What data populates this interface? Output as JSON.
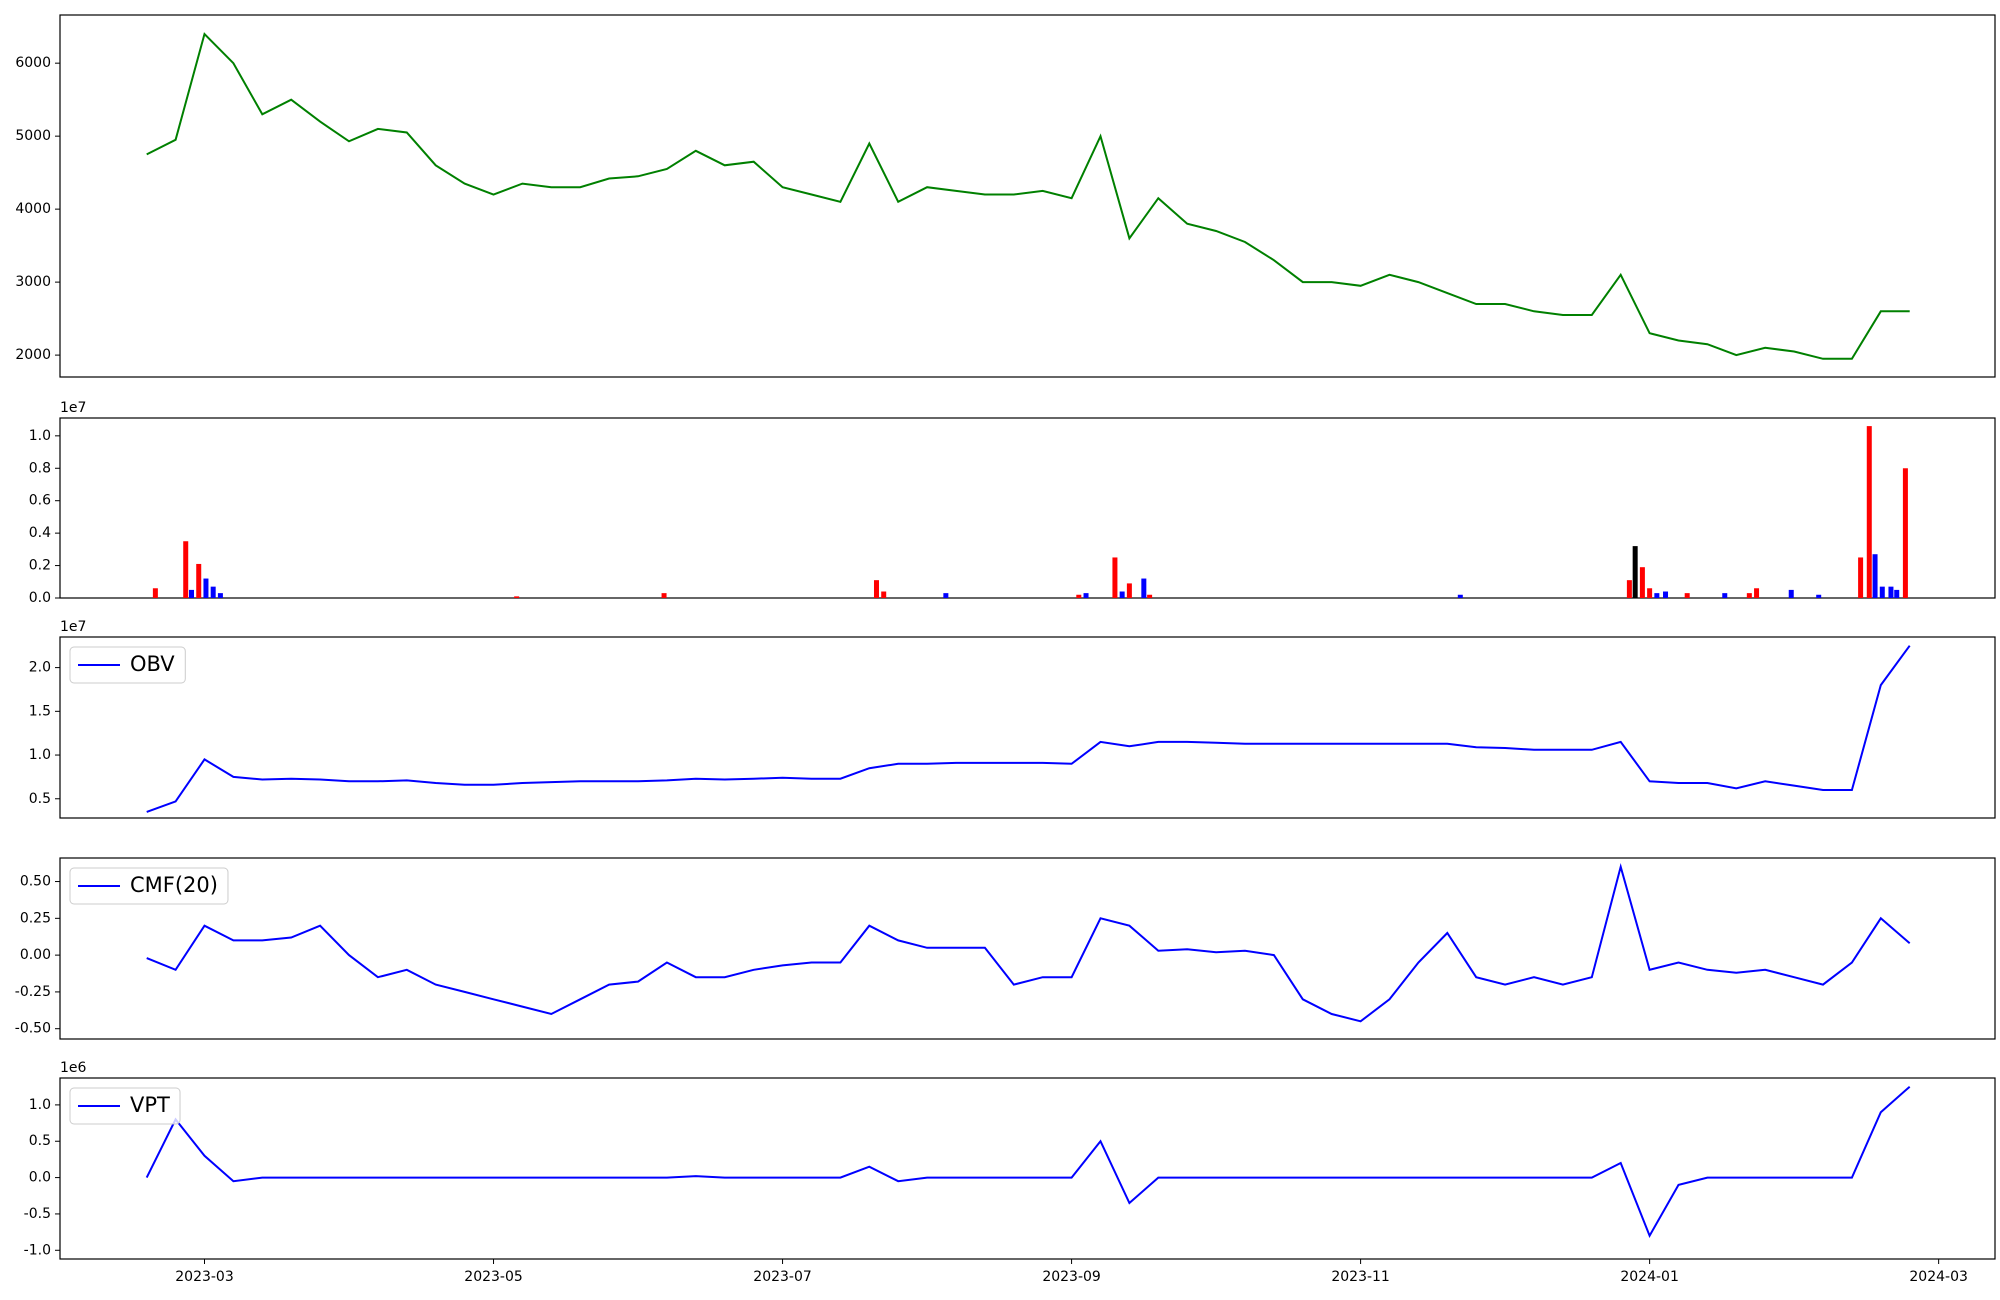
{
  "chart_data": [
    {
      "type": "line",
      "color": "green",
      "x": [
        2.6,
        2.8,
        3.0,
        3.2,
        3.4,
        3.6,
        3.8,
        4.0,
        4.2,
        4.4,
        4.6,
        4.8,
        5.0,
        5.2,
        5.4,
        5.6,
        5.8,
        6.0,
        6.2,
        6.4,
        6.6,
        6.8,
        7.0,
        7.2,
        7.4,
        7.6,
        7.8,
        8.0,
        8.2,
        8.4,
        8.6,
        8.8,
        9.0,
        9.2,
        9.4,
        9.6,
        9.8,
        10.0,
        10.2,
        10.4,
        10.6,
        10.8,
        11.0,
        11.2,
        11.4,
        11.6,
        11.8,
        12.0,
        12.2,
        12.4,
        12.6,
        12.8,
        13.0,
        13.2,
        13.4,
        13.6,
        13.8,
        14.0,
        14.2,
        14.4,
        14.6,
        14.8
      ],
      "values": [
        4750,
        4950,
        6400,
        6000,
        5300,
        5500,
        5200,
        4930,
        5100,
        5050,
        4600,
        4350,
        4200,
        4350,
        4300,
        4300,
        4420,
        4450,
        4550,
        4800,
        4600,
        4650,
        4300,
        4200,
        4100,
        4900,
        4100,
        4300,
        4250,
        4200,
        4200,
        4250,
        4150,
        5000,
        3600,
        4150,
        3800,
        3700,
        3550,
        3300,
        3000,
        3000,
        2950,
        3100,
        3000,
        2850,
        2700,
        2700,
        2600,
        2550,
        2550,
        3100,
        2300,
        2200,
        2150,
        2000,
        2100,
        2050,
        1950,
        1950,
        2600,
        2600
      ],
      "xlim": [
        2.0,
        15.39
      ],
      "ylim": [
        1700,
        6660
      ],
      "yticks": [
        2000,
        3000,
        4000,
        5000,
        6000
      ]
    },
    {
      "type": "bar",
      "offset_label": "1e7",
      "x": [
        2.66,
        2.87,
        2.91,
        2.96,
        3.01,
        3.06,
        3.11,
        5.16,
        6.18,
        7.65,
        7.7,
        8.13,
        9.05,
        9.1,
        9.3,
        9.35,
        9.4,
        9.5,
        9.54,
        11.69,
        12.86,
        12.9,
        12.95,
        13.0,
        13.05,
        13.11,
        13.26,
        13.52,
        13.69,
        13.74,
        13.98,
        14.17,
        14.46,
        14.52,
        14.56,
        14.61,
        14.67,
        14.71,
        14.77
      ],
      "values": [
        0.06,
        0.35,
        0.05,
        0.21,
        0.12,
        0.07,
        0.03,
        0.01,
        0.03,
        0.11,
        0.04,
        0.03,
        0.02,
        0.03,
        0.25,
        0.04,
        0.09,
        0.12,
        0.02,
        0.02,
        0.11,
        0.32,
        0.19,
        0.06,
        0.03,
        0.04,
        0.03,
        0.03,
        0.03,
        0.06,
        0.05,
        0.02,
        0.25,
        1.06,
        0.27,
        0.07,
        0.07,
        0.05,
        0.8
      ],
      "colors": [
        "red",
        "red",
        "blue",
        "red",
        "blue",
        "blue",
        "blue",
        "red",
        "red",
        "red",
        "red",
        "blue",
        "red",
        "blue",
        "red",
        "blue",
        "red",
        "blue",
        "red",
        "blue",
        "red",
        "black",
        "red",
        "red",
        "blue",
        "blue",
        "red",
        "blue",
        "red",
        "red",
        "blue",
        "blue",
        "red",
        "red",
        "blue",
        "blue",
        "blue",
        "blue",
        "red"
      ],
      "xlim": [
        2.0,
        15.39
      ],
      "ylim": [
        0,
        1.11
      ],
      "yticks": [
        {
          "value": 0,
          "label": "0.0"
        },
        0.2,
        0.4,
        0.6,
        0.8,
        {
          "value": 1.0,
          "label": "1.0"
        }
      ]
    },
    {
      "type": "line",
      "offset_label": "1e7",
      "legend": "upper left",
      "x": [
        2.6,
        2.8,
        3.0,
        3.2,
        3.4,
        3.6,
        3.8,
        4.0,
        4.2,
        4.4,
        4.6,
        4.8,
        5.0,
        5.2,
        5.4,
        5.6,
        5.8,
        6.0,
        6.2,
        6.4,
        6.6,
        6.8,
        7.0,
        7.2,
        7.4,
        7.6,
        7.8,
        8.0,
        8.2,
        8.4,
        8.6,
        8.8,
        9.0,
        9.2,
        9.4,
        9.6,
        9.8,
        10.0,
        10.2,
        10.4,
        10.6,
        10.8,
        11.0,
        11.2,
        11.4,
        11.6,
        11.8,
        12.0,
        12.2,
        12.4,
        12.6,
        12.8,
        13.0,
        13.2,
        13.4,
        13.6,
        13.8,
        14.0,
        14.2,
        14.4,
        14.6,
        14.8
      ],
      "series": [
        {
          "name": "OBV",
          "color": "blue",
          "values": [
            0.35,
            0.47,
            0.95,
            0.75,
            0.72,
            0.73,
            0.72,
            0.7,
            0.7,
            0.71,
            0.68,
            0.66,
            0.66,
            0.68,
            0.69,
            0.7,
            0.7,
            0.7,
            0.71,
            0.73,
            0.72,
            0.73,
            0.74,
            0.73,
            0.73,
            0.85,
            0.9,
            0.9,
            0.91,
            0.91,
            0.91,
            0.91,
            0.9,
            1.15,
            1.1,
            1.15,
            1.15,
            1.14,
            1.13,
            1.13,
            1.13,
            1.13,
            1.13,
            1.13,
            1.13,
            1.13,
            1.09,
            1.08,
            1.06,
            1.06,
            1.06,
            1.15,
            0.7,
            0.68,
            0.68,
            0.62,
            0.7,
            0.65,
            0.6,
            0.6,
            1.8,
            2.25
          ]
        }
      ],
      "xlim": [
        2.0,
        15.39
      ],
      "ylim": [
        0.28,
        2.35
      ],
      "yticks": [
        0.5,
        {
          "value": 1.0,
          "label": "1.0"
        },
        1.5,
        {
          "value": 2.0,
          "label": "2.0"
        }
      ]
    },
    {
      "type": "line",
      "legend": "upper left",
      "x": [
        2.6,
        2.8,
        3.0,
        3.2,
        3.4,
        3.6,
        3.8,
        4.0,
        4.2,
        4.4,
        4.6,
        4.8,
        5.0,
        5.2,
        5.4,
        5.6,
        5.8,
        6.0,
        6.2,
        6.4,
        6.6,
        6.8,
        7.0,
        7.2,
        7.4,
        7.6,
        7.8,
        8.0,
        8.2,
        8.4,
        8.6,
        8.8,
        9.0,
        9.2,
        9.4,
        9.6,
        9.8,
        10.0,
        10.2,
        10.4,
        10.6,
        10.8,
        11.0,
        11.2,
        11.4,
        11.6,
        11.8,
        12.0,
        12.2,
        12.4,
        12.6,
        12.8,
        13.0,
        13.2,
        13.4,
        13.6,
        13.8,
        14.0,
        14.2,
        14.4,
        14.6,
        14.8
      ],
      "series": [
        {
          "name": "CMF(20)",
          "color": "blue",
          "values": [
            -0.02,
            -0.1,
            0.2,
            0.1,
            0.1,
            0.12,
            0.2,
            0.0,
            -0.15,
            -0.1,
            -0.2,
            -0.25,
            -0.3,
            -0.35,
            -0.4,
            -0.3,
            -0.2,
            -0.18,
            -0.05,
            -0.15,
            -0.15,
            -0.1,
            -0.07,
            -0.05,
            -0.05,
            0.2,
            0.1,
            0.05,
            0.05,
            0.05,
            -0.2,
            -0.15,
            -0.15,
            0.25,
            0.2,
            0.03,
            0.04,
            0.02,
            0.03,
            0.0,
            -0.3,
            -0.4,
            -0.45,
            -0.3,
            -0.05,
            0.15,
            -0.15,
            -0.2,
            -0.15,
            -0.2,
            -0.15,
            0.6,
            -0.1,
            -0.05,
            -0.1,
            -0.12,
            -0.1,
            -0.15,
            -0.2,
            -0.05,
            0.25,
            0.08
          ]
        }
      ],
      "xlim": [
        2.0,
        15.39
      ],
      "ylim": [
        -0.57,
        0.66
      ],
      "yticks": [
        {
          "value": -0.5,
          "label": "-0.50"
        },
        {
          "value": -0.25,
          "label": "-0.25"
        },
        {
          "value": 0,
          "label": "0.00"
        },
        {
          "value": 0.25,
          "label": "0.25"
        },
        {
          "value": 0.5,
          "label": "0.50"
        }
      ]
    },
    {
      "type": "line",
      "offset_label": "1e6",
      "legend": "upper left",
      "x": [
        2.6,
        2.8,
        3.0,
        3.2,
        3.4,
        3.6,
        3.8,
        4.0,
        4.2,
        4.4,
        4.6,
        4.8,
        5.0,
        5.2,
        5.4,
        5.6,
        5.8,
        6.0,
        6.2,
        6.4,
        6.6,
        6.8,
        7.0,
        7.2,
        7.4,
        7.6,
        7.8,
        8.0,
        8.2,
        8.4,
        8.6,
        8.8,
        9.0,
        9.2,
        9.4,
        9.6,
        9.8,
        10.0,
        10.2,
        10.4,
        10.6,
        10.8,
        11.0,
        11.2,
        11.4,
        11.6,
        11.8,
        12.0,
        12.2,
        12.4,
        12.6,
        12.8,
        13.0,
        13.2,
        13.4,
        13.6,
        13.8,
        14.0,
        14.2,
        14.4,
        14.6,
        14.8
      ],
      "series": [
        {
          "name": "VPT",
          "color": "blue",
          "values": [
            0,
            0.8,
            0.3,
            -0.05,
            0,
            0,
            0,
            0,
            0,
            0,
            0,
            0,
            0,
            0,
            0,
            0,
            0,
            0,
            0,
            0.02,
            0,
            0,
            0,
            0,
            0,
            0.15,
            -0.05,
            0,
            0,
            0,
            0,
            0,
            0,
            0.5,
            -0.35,
            0,
            0,
            0,
            0,
            0,
            0,
            0,
            0,
            0,
            0,
            0,
            0,
            0,
            0,
            0,
            0,
            0.2,
            -0.8,
            -0.1,
            0,
            0,
            0,
            0,
            0,
            0,
            0.9,
            1.25
          ]
        }
      ],
      "xlim": [
        2.0,
        15.39
      ],
      "ylim": [
        -1.12,
        1.37
      ],
      "yticks": [
        {
          "value": -1.0,
          "label": "-1.0"
        },
        -0.5,
        {
          "value": 0,
          "label": "0.0"
        },
        0.5,
        {
          "value": 1.0,
          "label": "1.0"
        }
      ],
      "xticks": [
        {
          "value": 3,
          "label": "2023-03"
        },
        {
          "value": 5,
          "label": "2023-05"
        },
        {
          "value": 7,
          "label": "2023-07"
        },
        {
          "value": 9,
          "label": "2023-09"
        },
        {
          "value": 11,
          "label": "2023-11"
        },
        {
          "value": 13,
          "label": "2024-01"
        },
        {
          "value": 15,
          "label": "2024-03"
        }
      ]
    }
  ]
}
